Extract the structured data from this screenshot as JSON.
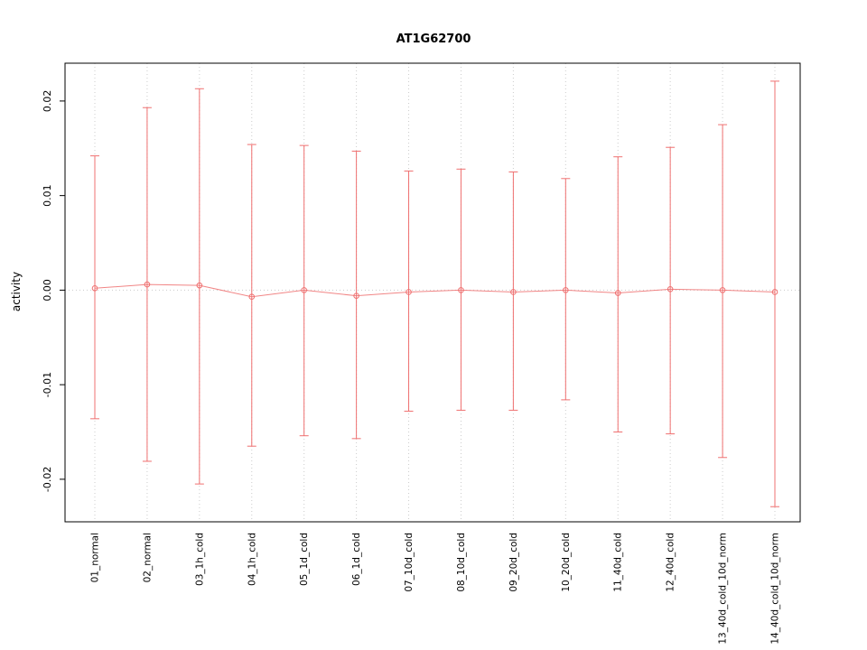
{
  "page": {
    "title": "AT1G62700"
  },
  "chart_data": {
    "type": "scatter",
    "title": "AT1G62700",
    "xlabel": "",
    "ylabel": "activity",
    "categories": [
      "01_normal",
      "02_normal",
      "03_1h_cold",
      "04_1h_cold",
      "05_1d_cold",
      "06_1d_cold",
      "07_10d_cold",
      "08_10d_cold",
      "09_20d_cold",
      "10_20d_cold",
      "11_40d_cold",
      "12_40d_cold",
      "13_40d_cold_10d_norm",
      "14_40d_cold_10d_norm"
    ],
    "series": [
      {
        "name": "mean_activity",
        "values": [
          0.0002,
          0.0006,
          0.0005,
          -0.0007,
          0.0,
          -0.0006,
          -0.0002,
          0.0,
          -0.0002,
          0.0,
          -0.0003,
          0.0001,
          0.0,
          -0.0002
        ],
        "upper": [
          0.0142,
          0.0193,
          0.0213,
          0.0154,
          0.0153,
          0.0147,
          0.0126,
          0.0128,
          0.0125,
          0.0118,
          0.0141,
          0.0151,
          0.0175,
          0.0221
        ],
        "lower": [
          -0.0136,
          -0.0181,
          -0.0205,
          -0.0165,
          -0.0154,
          -0.0157,
          -0.0128,
          -0.0127,
          -0.0127,
          -0.0116,
          -0.015,
          -0.0152,
          -0.0177,
          -0.0229
        ]
      }
    ],
    "ylim": [
      -0.0245,
      0.024
    ],
    "yticks": [
      -0.02,
      -0.01,
      0.0,
      0.01,
      0.02
    ],
    "grid": "dotted vertical gridline per category; dotted horizontal line at y=0",
    "legend": "none",
    "colors": {
      "series": "#ef7070",
      "grid": "#cccccc",
      "axis": "#000000",
      "text": "#000000"
    }
  }
}
